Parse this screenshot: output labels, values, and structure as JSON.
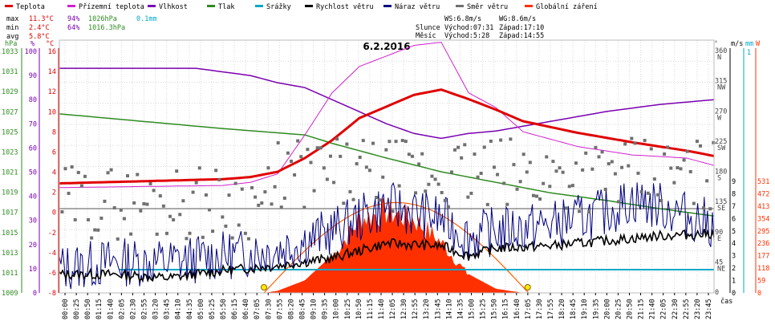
{
  "chart_data": {
    "type": "line",
    "title": "6.2.2016",
    "legend": [
      {
        "label": "Teplota",
        "color": "#e00000"
      },
      {
        "label": "Přízemní teplota",
        "color": "#d020d0"
      },
      {
        "label": "Vlhkost",
        "color": "#7a00b0"
      },
      {
        "label": "Tlak",
        "color": "#2e8b20"
      },
      {
        "label": "Srážky",
        "color": "#00a8c8"
      },
      {
        "label": "Rychlost větru",
        "color": "#000000"
      },
      {
        "label": "Náraz větru",
        "color": "#000080"
      },
      {
        "label": "Směr větru",
        "color": "#707070"
      },
      {
        "label": "Globální záření",
        "color": "#ff3000"
      }
    ],
    "stats": {
      "max_label": "max",
      "min_label": "min",
      "avg_label": "avg",
      "max_temp": "11.3°C",
      "max_hum": "94%",
      "max_press": "1026hPa",
      "max_rain": "0.1mm",
      "min_temp": "2.4°C",
      "min_hum": "64%",
      "min_press": "1016.3hPa",
      "avg_temp": "5.8°C",
      "ws": "WS:6.8m/s",
      "wg": "WG:8.6m/s",
      "sun_label": "Slunce",
      "sun_rise": "Východ:07:31",
      "sun_set": "Západ:17:10",
      "moon_label": "Měsíc",
      "moon_rise": "Východ:5:28",
      "moon_set": "Západ:14:55"
    },
    "axes": {
      "hpa_unit": "hPa",
      "pct_unit": "%",
      "c_unit": "°C",
      "hpa_ticks": [
        "1033",
        "1031",
        "1029",
        "1027",
        "1025",
        "1023",
        "1021",
        "1019",
        "1017",
        "1015",
        "1013",
        "1011",
        "1009"
      ],
      "pct_ticks": [
        "100",
        "90",
        "80",
        "70",
        "60",
        "50",
        "40",
        "30",
        "20",
        "10",
        "0"
      ],
      "c_ticks": [
        "16",
        "14",
        "12",
        "10",
        "8",
        "6",
        "4",
        "2",
        "0",
        "-2",
        "-4",
        "-6",
        "-8"
      ],
      "dir_unit": "°",
      "dir_ticks": [
        {
          "v": "360",
          "d": "N"
        },
        {
          "v": "315",
          "d": "NW"
        },
        {
          "v": "270",
          "d": "W"
        },
        {
          "v": "225",
          "d": "SW"
        },
        {
          "v": "180",
          "d": "S"
        },
        {
          "v": "135",
          "d": "SE"
        },
        {
          "v": "90",
          "d": "E"
        },
        {
          "v": "45",
          "d": "NE"
        },
        {
          "v": "0",
          "d": ""
        }
      ],
      "ms_unit": "m/s",
      "mm_unit": "mm",
      "w_unit": "W",
      "mm_max": "1",
      "ms_ticks": [
        "9",
        "8",
        "7",
        "6",
        "5",
        "4",
        "3",
        "2",
        "1",
        "0"
      ],
      "w_ticks": [
        "531",
        "472",
        "413",
        "354",
        "295",
        "236",
        "177",
        "118",
        "59",
        "0"
      ],
      "x_unit": "čas",
      "x_ticks": [
        "00:00",
        "00:25",
        "00:50",
        "01:15",
        "01:40",
        "02:05",
        "02:30",
        "02:55",
        "03:20",
        "03:45",
        "04:10",
        "04:35",
        "05:00",
        "05:25",
        "05:50",
        "06:15",
        "06:40",
        "07:05",
        "07:30",
        "07:55",
        "08:20",
        "08:45",
        "09:10",
        "09:35",
        "10:00",
        "10:25",
        "10:50",
        "11:15",
        "11:40",
        "12:05",
        "12:30",
        "12:55",
        "13:20",
        "13:45",
        "14:10",
        "14:35",
        "15:00",
        "15:25",
        "15:50",
        "16:15",
        "16:40",
        "17:05",
        "17:30",
        "17:55",
        "18:20",
        "18:45",
        "19:10",
        "19:35",
        "20:00",
        "20:25",
        "20:50",
        "21:15",
        "21:40",
        "22:05",
        "22:30",
        "22:55",
        "23:20",
        "23:45"
      ]
    },
    "series": [
      {
        "name": "Teplota",
        "unit": "°C",
        "points": [
          [
            0,
            2.4
          ],
          [
            3,
            2.6
          ],
          [
            6,
            2.8
          ],
          [
            7,
            3.0
          ],
          [
            8,
            3.5
          ],
          [
            9,
            4.8
          ],
          [
            10,
            6.5
          ],
          [
            11,
            8.6
          ],
          [
            12,
            9.7
          ],
          [
            13,
            10.8
          ],
          [
            14,
            11.3
          ],
          [
            15,
            10.4
          ],
          [
            16,
            9.4
          ],
          [
            17,
            8.3
          ],
          [
            19,
            7.2
          ],
          [
            21,
            6.3
          ],
          [
            22,
            5.9
          ],
          [
            23,
            5.5
          ],
          [
            24,
            5.0
          ]
        ]
      },
      {
        "name": "Přízemní teplota",
        "unit": "°C",
        "points": [
          [
            0,
            2.0
          ],
          [
            3,
            2.1
          ],
          [
            6,
            2.2
          ],
          [
            7,
            2.5
          ],
          [
            8,
            3.3
          ],
          [
            9,
            7.0
          ],
          [
            10,
            11.0
          ],
          [
            11,
            13.5
          ],
          [
            12,
            14.5
          ],
          [
            13,
            15.5
          ],
          [
            14,
            15.8
          ],
          [
            15,
            11.0
          ],
          [
            16,
            9.6
          ],
          [
            17,
            7.3
          ],
          [
            19,
            5.9
          ],
          [
            21,
            5.1
          ],
          [
            23,
            4.8
          ],
          [
            24,
            4.1
          ]
        ]
      },
      {
        "name": "Vlhkost",
        "unit": "%",
        "points": [
          [
            0,
            93
          ],
          [
            5,
            93
          ],
          [
            7,
            90
          ],
          [
            8,
            87
          ],
          [
            9,
            85
          ],
          [
            10,
            80
          ],
          [
            11,
            75
          ],
          [
            12,
            70
          ],
          [
            13,
            66
          ],
          [
            14,
            64
          ],
          [
            15,
            66
          ],
          [
            16,
            67
          ],
          [
            17,
            69
          ],
          [
            19,
            73
          ],
          [
            20,
            75
          ],
          [
            22,
            78
          ],
          [
            24,
            80
          ]
        ]
      },
      {
        "name": "Tlak",
        "unit": "hPa",
        "points": [
          [
            0,
            1026
          ],
          [
            3,
            1025.3
          ],
          [
            6,
            1024.6
          ],
          [
            9,
            1024
          ],
          [
            10,
            1023.2
          ],
          [
            12,
            1021.8
          ],
          [
            14,
            1020.5
          ],
          [
            16,
            1019.5
          ],
          [
            18,
            1018.5
          ],
          [
            20,
            1017.8
          ],
          [
            22,
            1017
          ],
          [
            24,
            1016.3
          ]
        ]
      },
      {
        "name": "Srážky",
        "unit": "mm",
        "points": [
          [
            0,
            0
          ],
          [
            2,
            0.05
          ],
          [
            3,
            0.1
          ],
          [
            24,
            0.1
          ]
        ]
      },
      {
        "name": "Rychlost větru",
        "unit": "m/s",
        "points": [
          [
            0,
            1.5
          ],
          [
            2,
            1.5
          ],
          [
            4,
            1.2
          ],
          [
            6,
            1.8
          ],
          [
            8,
            2.2
          ],
          [
            10,
            2.8
          ],
          [
            12,
            4.0
          ],
          [
            14,
            3.8
          ],
          [
            15,
            3.0
          ],
          [
            16,
            3.6
          ],
          [
            18,
            3.8
          ],
          [
            20,
            4.2
          ],
          [
            22,
            4.6
          ],
          [
            24,
            4.8
          ]
        ]
      },
      {
        "name": "Náraz větru",
        "unit": "m/s",
        "points": [
          [
            0,
            2.0
          ],
          [
            2,
            2.5
          ],
          [
            4,
            2.5
          ],
          [
            6,
            3.0
          ],
          [
            8,
            3.5
          ],
          [
            10,
            5.0
          ],
          [
            12,
            7.0
          ],
          [
            14,
            6.0
          ],
          [
            15,
            4.5
          ],
          [
            16,
            5.0
          ],
          [
            18,
            5.5
          ],
          [
            20,
            6.5
          ],
          [
            21,
            7.5
          ],
          [
            22,
            7.0
          ],
          [
            24,
            5.5
          ]
        ]
      },
      {
        "name": "Globální záření",
        "unit": "W",
        "points": [
          [
            0,
            0
          ],
          [
            7.5,
            0
          ],
          [
            8,
            10
          ],
          [
            9,
            60
          ],
          [
            10,
            180
          ],
          [
            11,
            380
          ],
          [
            12,
            420
          ],
          [
            13,
            380
          ],
          [
            14,
            260
          ],
          [
            15,
            90
          ],
          [
            16,
            20
          ],
          [
            17,
            0
          ],
          [
            24,
            0
          ]
        ]
      }
    ],
    "markers": [
      {
        "time": "07:30",
        "type": "sunrise"
      },
      {
        "time": "17:10",
        "type": "sunset"
      }
    ]
  }
}
